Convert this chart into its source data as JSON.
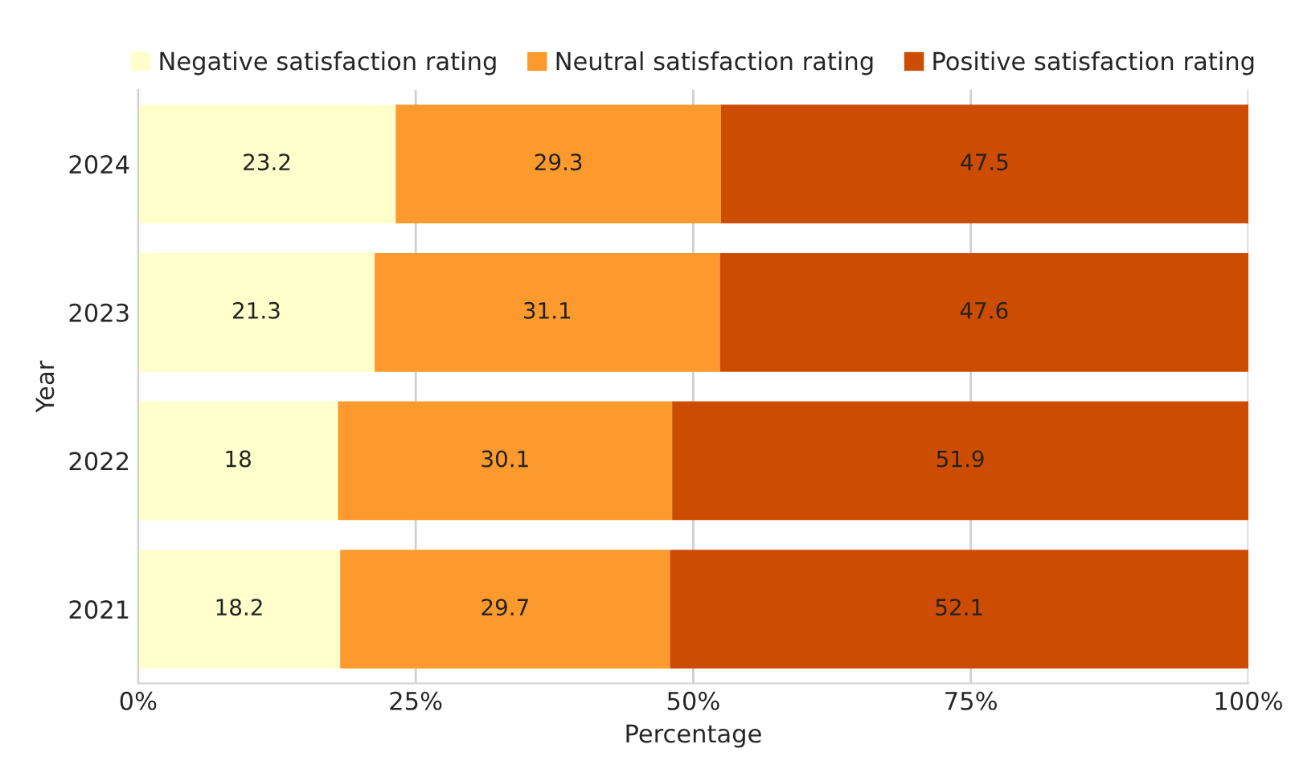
{
  "chart_data": {
    "type": "bar",
    "orientation": "horizontal",
    "stacked": true,
    "xlabel": "Percentage",
    "ylabel": "Year",
    "categories": [
      "2024",
      "2023",
      "2022",
      "2021"
    ],
    "series": [
      {
        "name": "Negative satisfaction rating",
        "color": "#ffffcc",
        "values": [
          23.2,
          21.3,
          18,
          18.2
        ]
      },
      {
        "name": "Neutral satisfaction rating",
        "color": "#fd9a2e",
        "values": [
          29.3,
          31.1,
          30.1,
          29.7
        ]
      },
      {
        "name": "Positive satisfaction rating",
        "color": "#cc4c02",
        "values": [
          47.5,
          47.6,
          51.9,
          52.1
        ]
      }
    ],
    "xlim": [
      0,
      100
    ],
    "xticks": [
      {
        "value": 0,
        "label": "0%"
      },
      {
        "value": 25,
        "label": "25%"
      },
      {
        "value": 50,
        "label": "50%"
      },
      {
        "value": 75,
        "label": "75%"
      },
      {
        "value": 100,
        "label": "100%"
      }
    ],
    "grid": "x",
    "legend": "top",
    "data_labels": true
  }
}
